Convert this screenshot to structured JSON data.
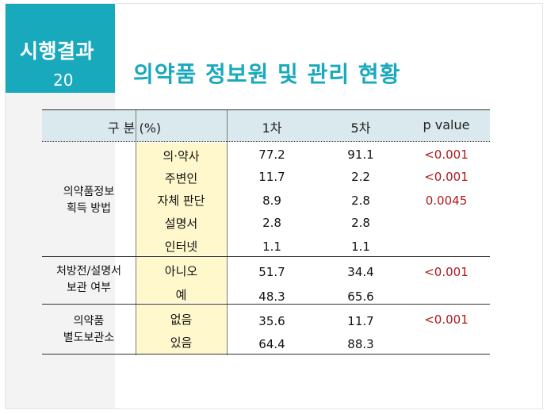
{
  "section": {
    "title": "시행결과",
    "number": "20"
  },
  "page_title": "의약품 정보원 및 관리 현황",
  "table": {
    "headers": {
      "category": "구 분 (%)",
      "col1": "1차",
      "col5": "5차",
      "p": "p value"
    },
    "groups": [
      {
        "label1": "의약품정보",
        "label2": "획득 방법",
        "rows": [
          {
            "item": "의·약사",
            "v1": "77.2",
            "v5": "91.1",
            "p": "<0.001"
          },
          {
            "item": "주변인",
            "v1": "11.7",
            "v5": "2.2",
            "p": "<0.001"
          },
          {
            "item": "자체 판단",
            "v1": "8.9",
            "v5": "2.8",
            "p": "0.0045"
          },
          {
            "item": "설명서",
            "v1": "2.8",
            "v5": "2.8",
            "p": ""
          },
          {
            "item": "인터넷",
            "v1": "1.1",
            "v5": "1.1",
            "p": ""
          }
        ]
      },
      {
        "label1": "처방전/설명서",
        "label2": "보관 여부",
        "rows": [
          {
            "item": "아니오",
            "v1": "51.7",
            "v5": "34.4",
            "p": "<0.001"
          },
          {
            "item": "예",
            "v1": "48.3",
            "v5": "65.6",
            "p": ""
          }
        ]
      },
      {
        "label1": "의약품",
        "label2": "별도보관소",
        "rows": [
          {
            "item": "없음",
            "v1": "35.6",
            "v5": "11.7",
            "p": "<0.001"
          },
          {
            "item": "있음",
            "v1": "64.4",
            "v5": "88.3",
            "p": ""
          }
        ]
      }
    ]
  }
}
